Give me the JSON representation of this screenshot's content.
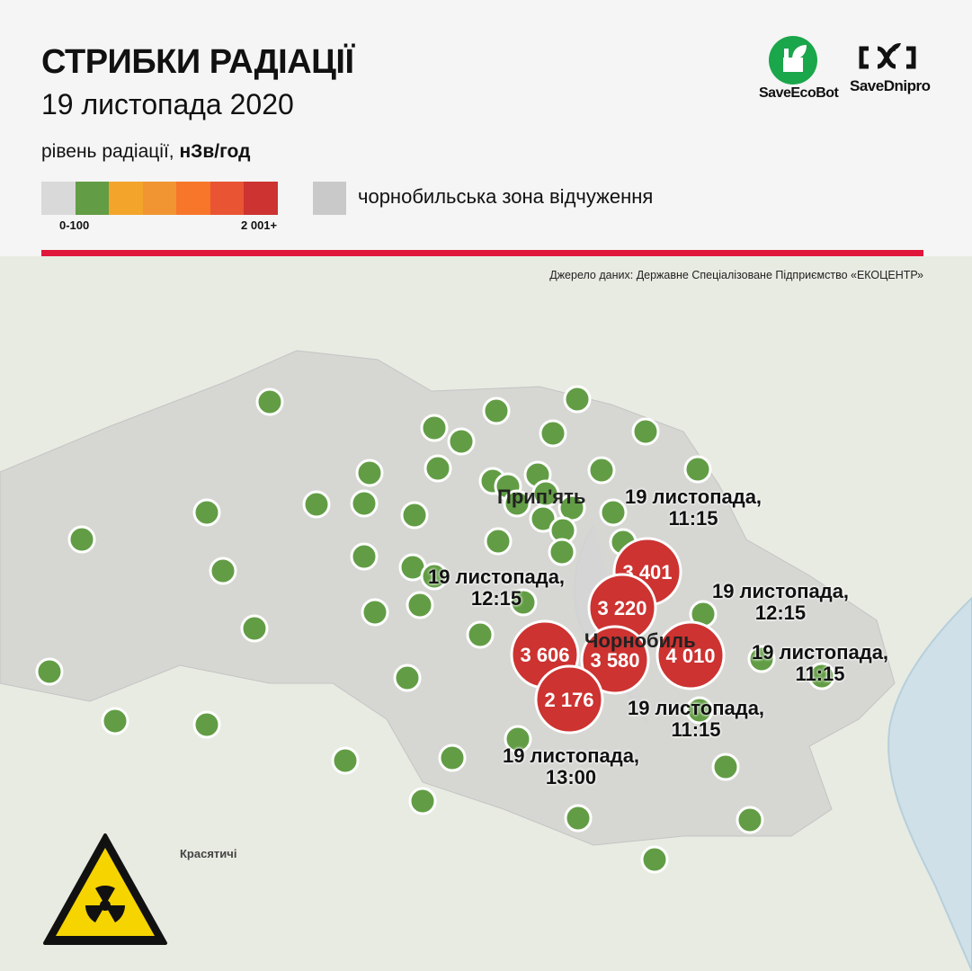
{
  "header": {
    "title": "СТРИБКИ РАДІАЦІЇ",
    "date": "19 листопада 2020",
    "unit_prefix": "рівень радіації, ",
    "unit": "нЗв/год"
  },
  "legend": {
    "scale_colors": [
      "#d9d9d9",
      "#629d45",
      "#f2a52a",
      "#f09532",
      "#f7762a",
      "#e95533",
      "#cc3331"
    ],
    "scale_min_label": "0-100",
    "scale_max_label": "2 001+",
    "zone_color": "#c9c9c9",
    "zone_label": "чорнобильська зона відчуження"
  },
  "logos": {
    "left": "SaveEcoBot",
    "right": "SaveDnipro"
  },
  "source": "Джерело даних: Державне Спеціалізоване Підприємство «ЕКОЦЕНТР»",
  "colors": {
    "accent": "#e0173a",
    "normal": "#629d45",
    "spike": "#cc3331",
    "map_bg": "#e8ebe2",
    "zone": "#d4d4d2"
  },
  "map": {
    "places": {
      "pripyat": "Прип'ять",
      "chornobyl": "Чорнобиль",
      "krasiatychi": "Красятичі"
    },
    "spikes": [
      {
        "value": "3 401"
      },
      {
        "value": "3 220"
      },
      {
        "value": "3 606"
      },
      {
        "value": "4 010"
      },
      {
        "value": "3 580"
      },
      {
        "value": "2 176"
      }
    ],
    "time_labels": [
      {
        "date": "19 листопада,",
        "time": "11:15"
      },
      {
        "date": "19 листопада,",
        "time": "12:15"
      },
      {
        "date": "19 листопада,",
        "time": "12:15"
      },
      {
        "date": "19 листопада,",
        "time": "11:15"
      },
      {
        "date": "19 листопада,",
        "time": "11:15"
      },
      {
        "date": "19 листопада,",
        "time": "13:00"
      }
    ]
  }
}
